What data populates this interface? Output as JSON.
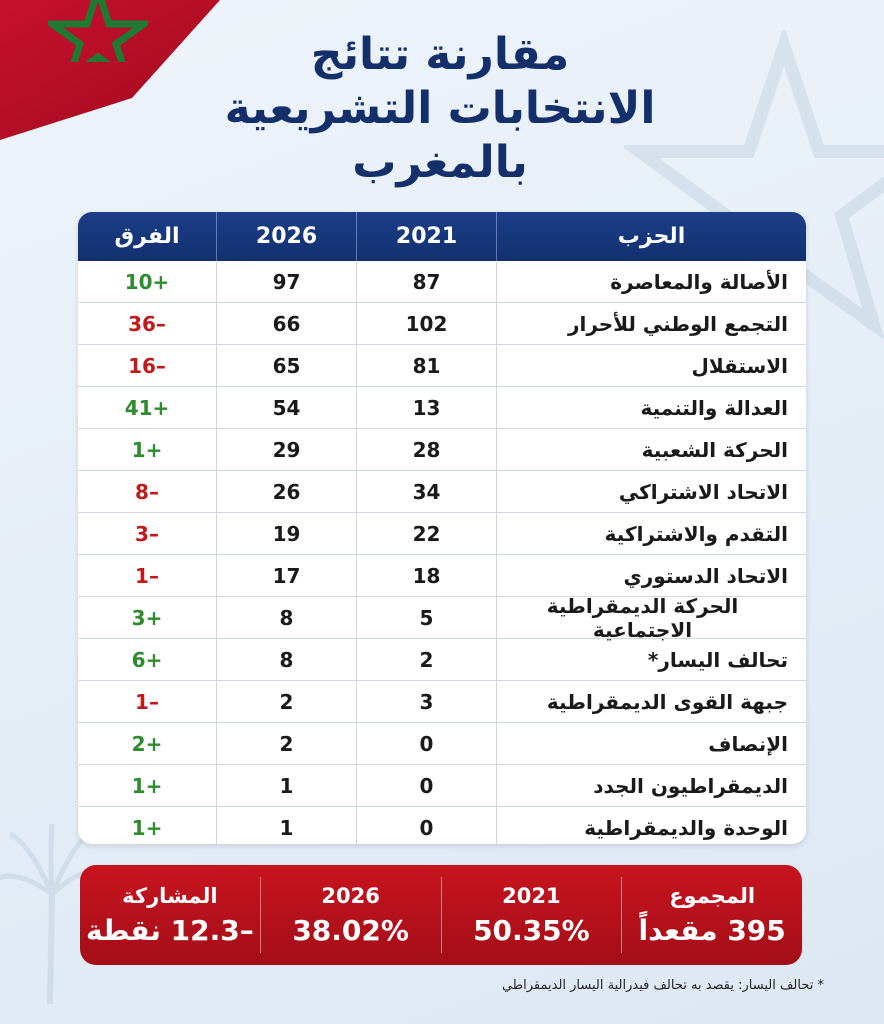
{
  "title_lines": [
    "مقارنة  تتائج",
    "الانتخابات التشريعية",
    "بالمغرب"
  ],
  "table": {
    "headers": {
      "party": "الحزب",
      "y2021": "2021",
      "y2026": "2026",
      "diff": "الفرق"
    },
    "rows": [
      {
        "party": "الأصالة والمعاصرة",
        "y2021": "87",
        "y2026": "97",
        "diff": "+10",
        "sign": "pos"
      },
      {
        "party": "التجمع الوطني للأحرار",
        "y2021": "102",
        "y2026": "66",
        "diff": "–36",
        "sign": "neg"
      },
      {
        "party": "الاستقلال",
        "y2021": "81",
        "y2026": "65",
        "diff": "–16",
        "sign": "neg"
      },
      {
        "party": "العدالة والتنمية",
        "y2021": "13",
        "y2026": "54",
        "diff": "+41",
        "sign": "pos"
      },
      {
        "party": "الحركة الشعبية",
        "y2021": "28",
        "y2026": "29",
        "diff": "+1",
        "sign": "pos"
      },
      {
        "party": "الاتحاد الاشتراكي",
        "y2021": "34",
        "y2026": "26",
        "diff": "–8",
        "sign": "neg"
      },
      {
        "party": "التقدم والاشتراكية",
        "y2021": "22",
        "y2026": "19",
        "diff": "–3",
        "sign": "neg"
      },
      {
        "party": "الاتحاد الدستوري",
        "y2021": "18",
        "y2026": "17",
        "diff": "–1",
        "sign": "neg"
      },
      {
        "party": "الحركة الديمقراطية الاجتماعية",
        "y2021": "5",
        "y2026": "8",
        "diff": "+3",
        "sign": "pos"
      },
      {
        "party": "تحالف اليسار*",
        "y2021": "2",
        "y2026": "8",
        "diff": "+6",
        "sign": "pos"
      },
      {
        "party": "جبهة القوى الديمقراطية",
        "y2021": "3",
        "y2026": "2",
        "diff": "–1",
        "sign": "neg"
      },
      {
        "party": "الإنصاف",
        "y2021": "0",
        "y2026": "2",
        "diff": "+2",
        "sign": "pos"
      },
      {
        "party": "الديمقراطيون الجدد",
        "y2021": "0",
        "y2026": "1",
        "diff": "+1",
        "sign": "pos"
      },
      {
        "party": "الوحدة والديمقراطية",
        "y2021": "0",
        "y2026": "1",
        "diff": "+1",
        "sign": "pos"
      }
    ]
  },
  "summary": [
    {
      "label": "المجموع",
      "value": "395 مقعداً"
    },
    {
      "label": "2021",
      "value": "50.35%"
    },
    {
      "label": "2026",
      "value": "38.02%"
    },
    {
      "label": "المشاركة",
      "value": "–12.3 نقطة"
    }
  ],
  "footnote": "* تحالف اليسار: يقصد به تحالف فيدرالية اليسار الديمقراطي",
  "colors": {
    "navy": "#13306b",
    "red": "#c8141f",
    "positive": "#2e8b2e",
    "negative": "#c21a1a"
  }
}
